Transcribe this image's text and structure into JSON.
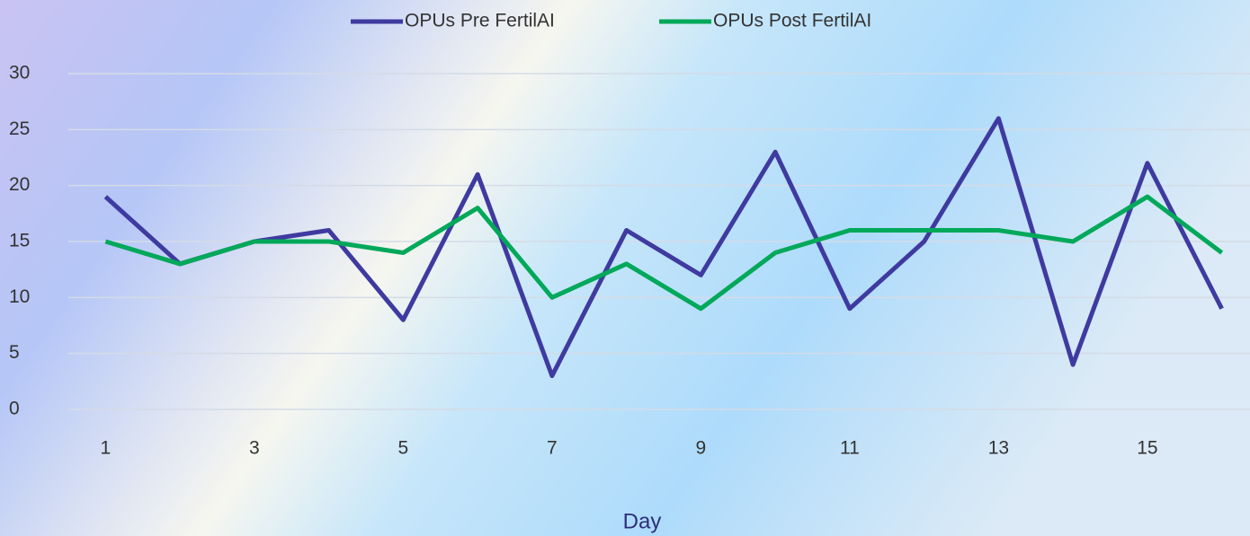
{
  "chart_data": {
    "type": "line",
    "categories": [
      "1",
      null,
      "3",
      null,
      "5",
      null,
      "7",
      null,
      "9",
      null,
      "11",
      null,
      "13",
      null,
      "15",
      null
    ],
    "series": [
      {
        "name": "OPUs Pre FertilAI",
        "color": "#3f3aa0",
        "values": [
          19,
          13,
          15,
          16,
          8,
          21,
          3,
          16,
          12,
          23,
          9,
          15,
          26,
          4,
          22,
          9
        ]
      },
      {
        "name": "OPUs Post FertilAI",
        "color": "#00a85a",
        "values": [
          15,
          13,
          15,
          15,
          14,
          18,
          10,
          13,
          9,
          14,
          16,
          16,
          16,
          15,
          19,
          14
        ]
      }
    ],
    "x_label": "Day",
    "ylim": [
      0,
      30
    ],
    "yticks": [
      0,
      5,
      10,
      15,
      20,
      25,
      30
    ],
    "grid": true,
    "legend": "top"
  }
}
